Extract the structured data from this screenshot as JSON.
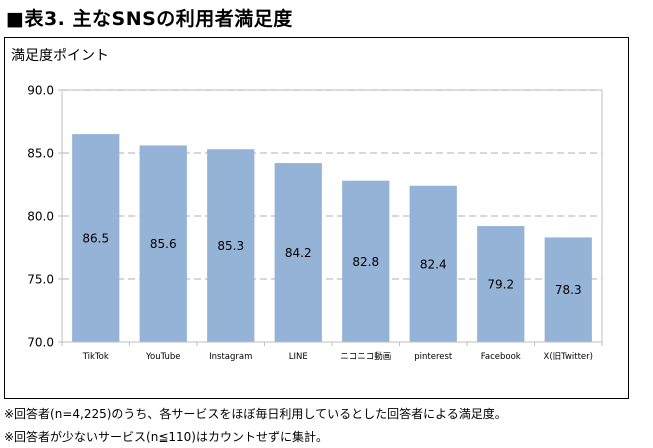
{
  "header": {
    "title": "■表3. 主なSNSの利用者満足度"
  },
  "notes": {
    "note1": "※回答者(n=4,225)のうち、各サービスをほぼ毎日利用しているとした回答者による満足度。",
    "note2": "※回答者が少ないサービス(n≦110)はカウントせずに集計。"
  },
  "chart_data": {
    "type": "bar",
    "ylabel": "満足度ポイント",
    "xlabel": "",
    "categories": [
      "TikTok",
      "YouTube",
      "Instagram",
      "LINE",
      "ニコニコ動画",
      "pinterest",
      "Facebook",
      "X(旧Twitter)"
    ],
    "values": [
      86.5,
      85.6,
      85.3,
      84.2,
      82.8,
      82.4,
      79.2,
      78.3
    ],
    "value_labels": [
      "86.5",
      "85.6",
      "85.3",
      "84.2",
      "82.8",
      "82.4",
      "79.2",
      "78.3"
    ],
    "ylim": [
      70,
      90
    ],
    "yticks": [
      70,
      75,
      80,
      85,
      90
    ],
    "ytick_labels": [
      "70.0",
      "75.0",
      "80.0",
      "85.0",
      "90.0"
    ],
    "grid": true,
    "legend": "none",
    "colors": {
      "bar": "#95b3d7",
      "grid": "#c0c0c0",
      "axis": "#bfbfbf"
    }
  }
}
